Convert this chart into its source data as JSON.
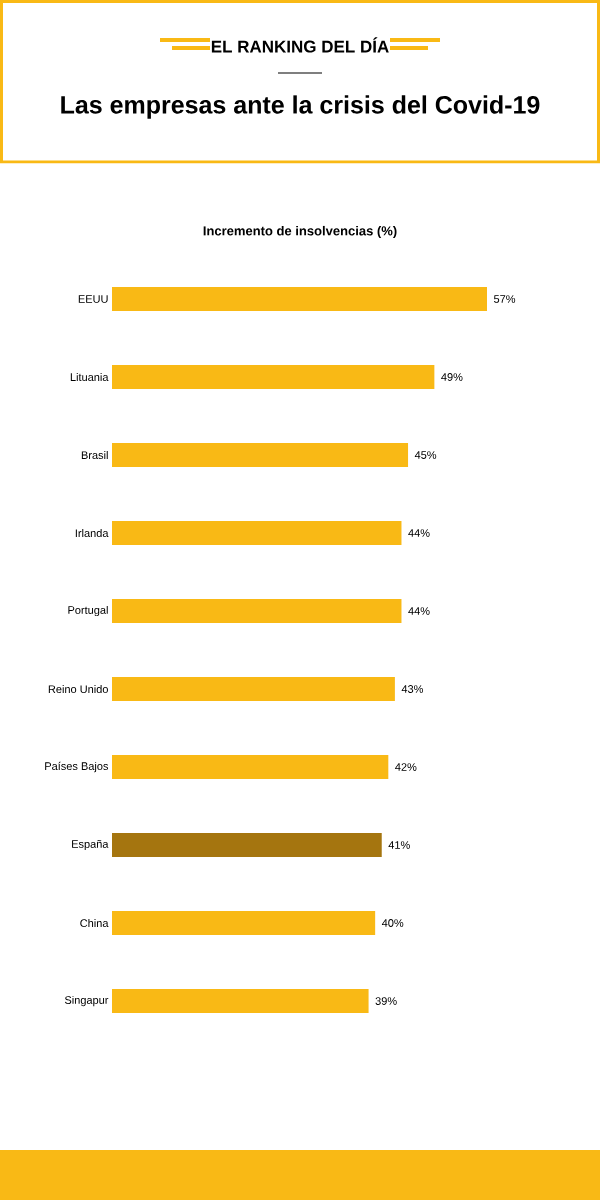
{
  "chart_data": {
    "type": "bar",
    "orientation": "horizontal",
    "title": "Las empresas ante la crisis del Covid-19",
    "subtitle": "Incremento de insolvencias (%)",
    "annotations": [
      "EL RANKING DEL DÍA"
    ],
    "categories": [
      "EEUU",
      "Lituania",
      "Brasil",
      "Irlanda",
      "Portugal",
      "Reino Unido",
      "Países Bajos",
      "España",
      "China",
      "Singapur"
    ],
    "values": [
      57,
      49,
      45,
      44,
      44,
      43,
      42,
      41,
      40,
      39
    ],
    "value_labels": [
      "57%",
      "49%",
      "45%",
      "44%",
      "44%",
      "43%",
      "42%",
      "41%",
      "40%",
      "39%"
    ],
    "colors": [
      "#f9b915",
      "#f9b915",
      "#f9b915",
      "#f9b915",
      "#f9b915",
      "#f9b915",
      "#f9b915",
      "#a5750f",
      "#f9b915",
      "#f9b915"
    ],
    "tick_labels": "y"
  }
}
